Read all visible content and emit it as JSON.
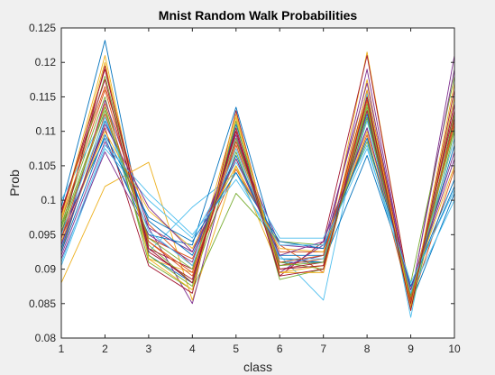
{
  "chart_data": {
    "type": "line",
    "title": "Mnist Random Walk Probabilities",
    "xlabel": "class",
    "ylabel": "Prob",
    "x": [
      1,
      2,
      3,
      4,
      5,
      6,
      7,
      8,
      9,
      10
    ],
    "xlim": [
      1,
      10
    ],
    "ylim": [
      0.08,
      0.125
    ],
    "xticks": [
      1,
      2,
      3,
      4,
      5,
      6,
      7,
      8,
      9,
      10
    ],
    "yticks": [
      0.08,
      0.085,
      0.09,
      0.095,
      0.1,
      0.105,
      0.11,
      0.115,
      0.12,
      0.125
    ],
    "ytick_labels": [
      "0.08",
      "0.085",
      "0.09",
      "0.095",
      "0.1",
      "0.105",
      "0.11",
      "0.115",
      "0.12",
      "0.125"
    ],
    "grid": false,
    "legend": "none",
    "colors": [
      "#0072BD",
      "#D95319",
      "#EDB120",
      "#7E2F8E",
      "#77AC30",
      "#4DBEEE",
      "#A2142F"
    ],
    "series": [
      {
        "values": [
          0.099,
          0.1232,
          0.092,
          0.088,
          0.111,
          0.091,
          0.091,
          0.112,
          0.085,
          0.101
        ]
      },
      {
        "values": [
          0.0985,
          0.1165,
          0.0965,
          0.0905,
          0.1045,
          0.0935,
          0.0895,
          0.1145,
          0.0845,
          0.114
        ]
      },
      {
        "values": [
          0.088,
          0.102,
          0.1055,
          0.0855,
          0.105,
          0.09,
          0.0905,
          0.1215,
          0.086,
          0.109
        ]
      },
      {
        "values": [
          0.092,
          0.1085,
          0.096,
          0.085,
          0.109,
          0.0905,
          0.092,
          0.119,
          0.0855,
          0.121
        ]
      },
      {
        "values": [
          0.0965,
          0.115,
          0.091,
          0.087,
          0.101,
          0.094,
          0.0935,
          0.1085,
          0.088,
          0.118
        ]
      },
      {
        "values": [
          0.1,
          0.1125,
          0.0925,
          0.099,
          0.104,
          0.092,
          0.0855,
          0.1155,
          0.083,
          0.115
        ]
      },
      {
        "values": [
          0.0945,
          0.1105,
          0.0905,
          0.0865,
          0.113,
          0.089,
          0.094,
          0.121,
          0.086,
          0.113
        ]
      },
      {
        "values": [
          0.0955,
          0.109,
          0.095,
          0.0935,
          0.1135,
          0.0915,
          0.091,
          0.1065,
          0.0875,
          0.102
        ]
      },
      {
        "values": [
          0.0925,
          0.1125,
          0.0945,
          0.0915,
          0.106,
          0.0925,
          0.0925,
          0.1095,
          0.085,
          0.1045
        ]
      },
      {
        "values": [
          0.0975,
          0.121,
          0.0915,
          0.0895,
          0.1125,
          0.0895,
          0.0905,
          0.1175,
          0.0845,
          0.117
        ]
      },
      {
        "values": [
          0.0935,
          0.1145,
          0.096,
          0.0925,
          0.1085,
          0.0935,
          0.093,
          0.1105,
          0.087,
          0.106
        ]
      },
      {
        "values": [
          0.096,
          0.118,
          0.0935,
          0.088,
          0.107,
          0.091,
          0.09,
          0.114,
          0.084,
          0.11
        ]
      },
      {
        "values": [
          0.0905,
          0.1075,
          0.1,
          0.0945,
          0.1055,
          0.0945,
          0.0945,
          0.108,
          0.0865,
          0.1
        ]
      },
      {
        "values": [
          0.095,
          0.1195,
          0.093,
          0.09,
          0.11,
          0.09,
          0.091,
          0.116,
          0.0855,
          0.112
        ]
      },
      {
        "values": [
          0.093,
          0.1115,
          0.097,
          0.092,
          0.1065,
          0.092,
          0.092,
          0.1125,
          0.086,
          0.108
        ]
      },
      {
        "values": [
          0.097,
          0.116,
          0.094,
          0.089,
          0.108,
          0.0905,
          0.0915,
          0.115,
          0.085,
          0.111
        ]
      },
      {
        "values": [
          0.094,
          0.11,
          0.0985,
          0.093,
          0.105,
          0.093,
          0.0925,
          0.11,
          0.087,
          0.105
        ]
      },
      {
        "values": [
          0.0915,
          0.107,
          0.095,
          0.091,
          0.1095,
          0.0895,
          0.0935,
          0.117,
          0.086,
          0.119
        ]
      },
      {
        "values": [
          0.096,
          0.1135,
          0.092,
          0.0875,
          0.1115,
          0.0885,
          0.09,
          0.1135,
          0.0845,
          0.1125
        ]
      },
      {
        "values": [
          0.095,
          0.112,
          0.0955,
          0.0905,
          0.1075,
          0.0915,
          0.0915,
          0.1115,
          0.0865,
          0.109
        ]
      },
      {
        "values": [
          0.0985,
          0.1175,
          0.0925,
          0.0885,
          0.1105,
          0.09,
          0.0905,
          0.113,
          0.085,
          0.114
        ]
      },
      {
        "values": [
          0.0925,
          0.1095,
          0.0975,
          0.094,
          0.104,
          0.094,
          0.093,
          0.109,
          0.0875,
          0.103
        ]
      },
      {
        "values": [
          0.0945,
          0.114,
          0.094,
          0.0895,
          0.1085,
          0.091,
          0.092,
          0.1145,
          0.0855,
          0.1115
        ]
      },
      {
        "values": [
          0.097,
          0.12,
          0.0915,
          0.087,
          0.112,
          0.0895,
          0.0895,
          0.116,
          0.0845,
          0.115
        ]
      },
      {
        "values": [
          0.0935,
          0.111,
          0.099,
          0.0925,
          0.106,
          0.092,
          0.094,
          0.1105,
          0.087,
          0.107
        ]
      },
      {
        "values": [
          0.0955,
          0.113,
          0.0945,
          0.09,
          0.109,
          0.0905,
          0.091,
          0.112,
          0.086,
          0.1105
        ]
      },
      {
        "values": [
          0.091,
          0.108,
          0.101,
          0.095,
          0.103,
          0.0935,
          0.0935,
          0.1075,
          0.088,
          0.1015
        ]
      },
      {
        "values": [
          0.098,
          0.119,
          0.093,
          0.088,
          0.11,
          0.089,
          0.09,
          0.115,
          0.084,
          0.116
        ]
      }
    ]
  }
}
